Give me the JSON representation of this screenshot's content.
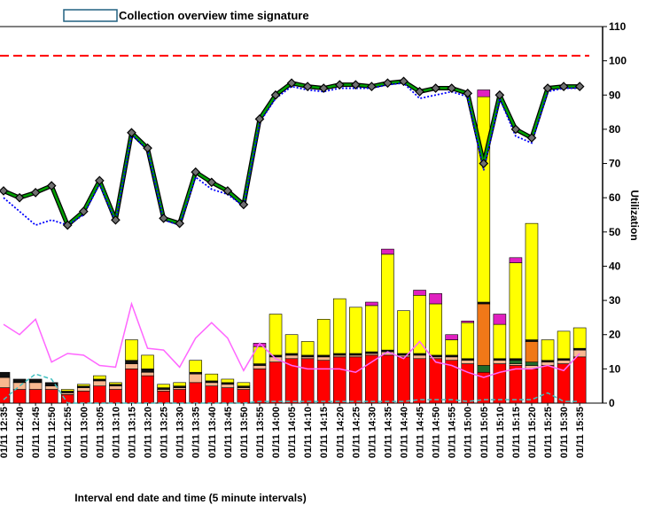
{
  "chart_data": {
    "type": "bar",
    "title": "Collection overview time signature",
    "xlabel": "Interval end date and time (5 minute intervals)",
    "ylabel": "Utilization",
    "ylim": [
      0,
      110
    ],
    "yticks": [
      0,
      10,
      20,
      30,
      40,
      50,
      60,
      70,
      80,
      90,
      100,
      110
    ],
    "y_axis_side": "right",
    "grid": false,
    "legend": "none",
    "categories": [
      "01/11 12:35",
      "01/11 12:40",
      "01/11 12:45",
      "01/11 12:50",
      "01/11 12:55",
      "01/11 13:00",
      "01/11 13:05",
      "01/11 13:10",
      "01/11 13:15",
      "01/11 13:20",
      "01/11 13:25",
      "01/11 13:30",
      "01/11 13:35",
      "01/11 13:40",
      "01/11 13:45",
      "01/11 13:50",
      "01/11 13:55",
      "01/11 14:00",
      "01/11 14:05",
      "01/11 14:10",
      "01/11 14:15",
      "01/11 14:20",
      "01/11 14:25",
      "01/11 14:30",
      "01/11 14:35",
      "01/11 14:40",
      "01/11 14:45",
      "01/11 14:50",
      "01/11 14:55",
      "01/11 15:00",
      "01/11 15:05",
      "01/11 15:10",
      "01/11 15:15",
      "01/11 15:20",
      "01/11 15:25",
      "01/11 15:30",
      "01/11 15:35"
    ],
    "stacked_series": [
      {
        "color": "#ff0000",
        "values": [
          4.5,
          4,
          4,
          4,
          2.5,
          3.5,
          5,
          4,
          10,
          8,
          3.5,
          4,
          6,
          5,
          4.5,
          4,
          10,
          12,
          13,
          13,
          12.5,
          13.5,
          13.5,
          14,
          14,
          13.5,
          13,
          13,
          12.5,
          11.5,
          9,
          11.5,
          11,
          10,
          11,
          11.5,
          13.5
        ]
      },
      {
        "color": "#f8b890",
        "values": [
          3,
          2,
          2,
          1,
          0.5,
          1,
          1.5,
          1,
          1.5,
          1,
          0.5,
          0.5,
          2.5,
          1,
          1,
          0.5,
          1,
          1.5,
          1,
          0.5,
          1,
          0.5,
          0.5,
          0.5,
          1,
          0.5,
          1,
          0.5,
          1,
          1,
          0,
          1,
          0.5,
          1,
          1,
          1,
          2
        ]
      },
      {
        "color": "#1e6a2a",
        "values": [
          0,
          0,
          0,
          0,
          0,
          0,
          0,
          0,
          0,
          0,
          0,
          0,
          0,
          0,
          0,
          0,
          0,
          0,
          0,
          0,
          0,
          0,
          0,
          0,
          0,
          0,
          0,
          0,
          0,
          0,
          2,
          0,
          1,
          1,
          0,
          0,
          0
        ]
      },
      {
        "color": "#f07818",
        "values": [
          0,
          0,
          0,
          0,
          0,
          0,
          0,
          0,
          0,
          0,
          0,
          0,
          0,
          0,
          0,
          0,
          0,
          0,
          0,
          0,
          0,
          0,
          0,
          0,
          0,
          0,
          0,
          0,
          0,
          0,
          18,
          0,
          0,
          6,
          0,
          0,
          0
        ]
      },
      {
        "color": "#101010",
        "values": [
          1.5,
          1,
          1,
          1,
          0.5,
          0.5,
          0.5,
          0.5,
          1,
          1,
          0.5,
          0.5,
          0.5,
          0.5,
          0.5,
          0.5,
          0.5,
          0.5,
          0.5,
          0.5,
          0.5,
          0.5,
          0.5,
          0.5,
          0.5,
          0.5,
          0.5,
          0.5,
          0.5,
          0.5,
          0.5,
          0.5,
          0.5,
          0.5,
          0.5,
          0.5,
          0.5
        ]
      },
      {
        "color": "#ffff00",
        "values": [
          0,
          0,
          0,
          0,
          0.5,
          0.5,
          1,
          0.5,
          6,
          4,
          1,
          1,
          3.5,
          2,
          1,
          1,
          5,
          12,
          5.5,
          4,
          10.5,
          16,
          13.5,
          13.5,
          28,
          12.5,
          17,
          15,
          4.5,
          10.5,
          60,
          10,
          28,
          34,
          6,
          8,
          6
        ]
      },
      {
        "color": "#e020c0",
        "values": [
          0,
          0,
          0,
          0,
          0,
          0,
          0,
          0,
          0,
          0,
          0,
          0,
          0,
          0,
          0,
          0,
          1,
          0,
          0,
          0,
          0,
          0,
          0,
          1,
          1.5,
          0,
          1.5,
          3,
          1.5,
          0.5,
          2,
          3,
          1.5,
          0,
          0,
          0,
          0
        ]
      }
    ],
    "line_series": [
      {
        "color": "#00a000",
        "style": "solid-thick",
        "values": [
          62,
          60,
          61.5,
          63.5,
          52,
          56,
          65,
          53.5,
          79,
          74.5,
          54,
          52.5,
          67.5,
          64.5,
          62,
          58,
          83,
          90,
          93.5,
          92.5,
          92,
          93,
          93,
          92.5,
          93.5,
          94,
          91,
          92,
          92,
          90.5,
          70,
          90,
          80,
          77.5,
          92,
          92.5,
          92.5
        ]
      },
      {
        "color": "#0000ff",
        "style": "dotted",
        "values": [
          60,
          56,
          52,
          53.5,
          52,
          55,
          64,
          53,
          78.5,
          74,
          53.5,
          52,
          66,
          62.5,
          61,
          57.5,
          82,
          89,
          92.5,
          91.5,
          91,
          92,
          92,
          92,
          93,
          93.5,
          89,
          90,
          91,
          89.5,
          68,
          89,
          78,
          76,
          91,
          92,
          92
        ]
      },
      {
        "color": "#ff66ff",
        "style": "solid-thin",
        "values": [
          23,
          20,
          24.5,
          12,
          14.5,
          14,
          11,
          10.5,
          29,
          16,
          15.5,
          10.5,
          19,
          23.5,
          19,
          9.5,
          17.5,
          13,
          11,
          10,
          10,
          10,
          9,
          12,
          15,
          13,
          18,
          12,
          11,
          9,
          7.5,
          9,
          10,
          10,
          11,
          9.5,
          14.5
        ]
      },
      {
        "color": "#40c0c0",
        "style": "dashed",
        "values": [
          1,
          5,
          8.5,
          7,
          0,
          0,
          0,
          0,
          0,
          0,
          0,
          0,
          0,
          0,
          0,
          0,
          0.5,
          0.5,
          0.5,
          0.5,
          0.5,
          0.5,
          0.5,
          0.5,
          0.5,
          0.5,
          1,
          1,
          1,
          0.5,
          1,
          1,
          1,
          1,
          3,
          0.5,
          0.5
        ]
      }
    ],
    "reference_line": {
      "value": 101.5,
      "color": "#ff0000",
      "style": "dashed"
    }
  }
}
